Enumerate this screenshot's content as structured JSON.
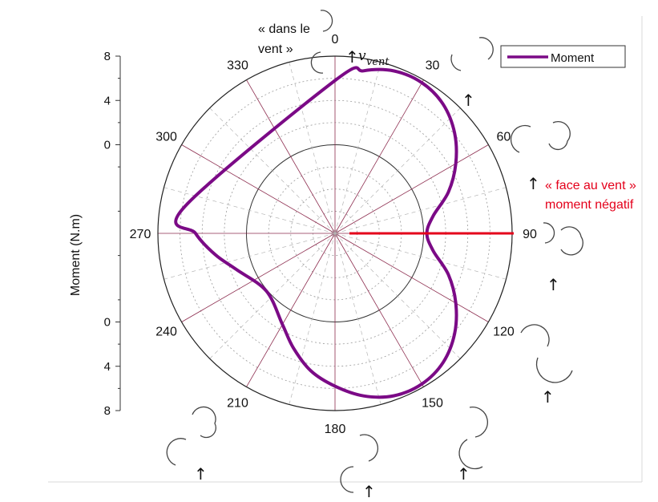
{
  "chart_data": {
    "type": "polar-line",
    "ylabel": "Moment (N.m)",
    "radial_axis": {
      "range": [
        -8,
        8
      ],
      "tick_labels_upper": [
        "8",
        "4",
        "0"
      ],
      "tick_labels_lower": [
        "0",
        "4",
        "8"
      ],
      "grid": true
    },
    "angular_axis": {
      "unit": "degrees",
      "labels": [
        "0",
        "30",
        "60",
        "90",
        "120",
        "150",
        "180",
        "210",
        "240",
        "270",
        "300",
        "330"
      ],
      "grid": true
    },
    "legend": {
      "position": "top-right",
      "entries": [
        "Moment"
      ]
    },
    "series": [
      {
        "name": "Moment",
        "color": "#7b0a86",
        "polar_points": [
          {
            "theta": 0,
            "r": 5.8
          },
          {
            "theta": 10,
            "r": 6.9
          },
          {
            "theta": 20,
            "r": 7.6
          },
          {
            "theta": 30,
            "r": 7.7
          },
          {
            "theta": 40,
            "r": 7.2
          },
          {
            "theta": 50,
            "r": 6.1
          },
          {
            "theta": 60,
            "r": 4.6
          },
          {
            "theta": 70,
            "r": 2.9
          },
          {
            "theta": 80,
            "r": 1.0
          },
          {
            "theta": 90,
            "r": 0.3
          },
          {
            "theta": 100,
            "r": 1.0
          },
          {
            "theta": 110,
            "r": 2.9
          },
          {
            "theta": 120,
            "r": 4.6
          },
          {
            "theta": 130,
            "r": 6.1
          },
          {
            "theta": 140,
            "r": 7.2
          },
          {
            "theta": 150,
            "r": 7.7
          },
          {
            "theta": 160,
            "r": 7.6
          },
          {
            "theta": 170,
            "r": 6.9
          },
          {
            "theta": 180,
            "r": 5.8
          },
          {
            "theta": 190,
            "r": 4.6
          },
          {
            "theta": 200,
            "r": 3.0
          },
          {
            "theta": 210,
            "r": 1.5
          },
          {
            "theta": 230,
            "r": 0.1
          },
          {
            "theta": 250,
            "r": 1.5
          },
          {
            "theta": 260,
            "r": 3.0
          },
          {
            "theta": 270,
            "r": 4.6
          },
          {
            "theta": 280,
            "r": 5.8
          }
        ]
      }
    ],
    "annotations": {
      "top_note": [
        "« dans le",
        "vent »"
      ],
      "wind_symbol": "v",
      "wind_subscript": "vent",
      "right_note": [
        "« face au vent »",
        "moment négatif"
      ],
      "right_note_color": "#e4001b",
      "marker_line_color": "#e4001b"
    }
  }
}
